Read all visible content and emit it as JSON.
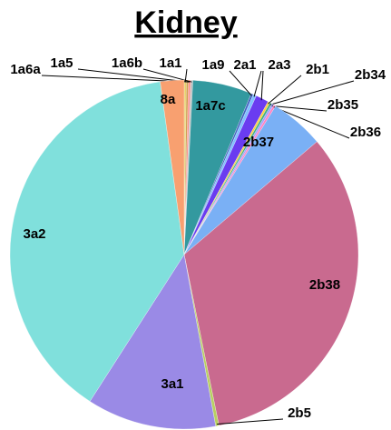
{
  "chart_data": {
    "type": "pie",
    "title": "Kidney",
    "categories": [
      "1a1",
      "1a5",
      "1a6a",
      "1a6b",
      "1a7c",
      "1a9",
      "2a1",
      "2a3",
      "2b1",
      "2b34",
      "2b35",
      "2b36",
      "2b37",
      "2b38",
      "2b5",
      "3a1",
      "3a2",
      "8a"
    ],
    "values": [
      0.2,
      0.2,
      0.2,
      0.2,
      5.5,
      0.2,
      0.3,
      1.2,
      0.2,
      0.2,
      0.2,
      0.2,
      5.0,
      33,
      0.3,
      12,
      38.7,
      2.2
    ],
    "colors": [
      "#e6d06a",
      "#d0a050",
      "#ff8c8c",
      "#c0c0c0",
      "#33999f",
      "#4060c0",
      "#80c0ff",
      "#6a3cf0",
      "#ffd040",
      "#40b080",
      "#a0a0ff",
      "#ff80c0",
      "#7ab0f5",
      "#c96a8f",
      "#b8d060",
      "#9a8ae6",
      "#80e0dc",
      "#f8a070"
    ]
  }
}
